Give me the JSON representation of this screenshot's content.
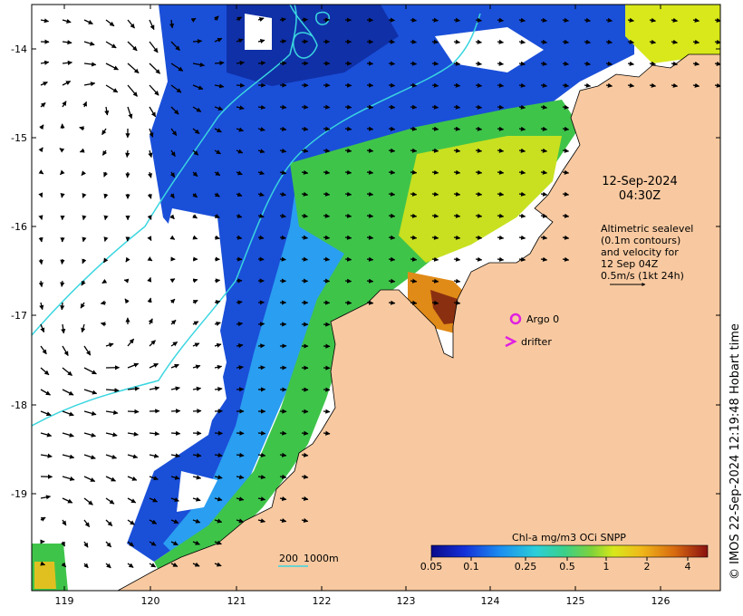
{
  "axes": {
    "y_ticks": [
      "-14",
      "-15",
      "-16",
      "-17",
      "-18",
      "-19"
    ],
    "x_ticks": [
      "119",
      "120",
      "121",
      "122",
      "123",
      "124",
      "125",
      "126"
    ]
  },
  "annotations": {
    "date": "12-Sep-2024",
    "time": "04:30Z",
    "sealevel_lines": [
      "Altimetric sealevel",
      "(0.1m contours)",
      "and velocity for",
      "12 Sep 04Z",
      "0.5m/s (1kt 24h)"
    ],
    "argo_label": "Argo 0",
    "drifter_label": "drifter",
    "depth_200": "200",
    "depth_1000": "1000m",
    "credit": "© IMOS 22-Sep-2024 12:19:48 Hobart time"
  },
  "colorbar": {
    "title": "Chl-a mg/m3 OCi SNPP",
    "ticks": [
      "0.05",
      "0.1",
      "0.25",
      "0.5",
      "1",
      "2",
      "4"
    ]
  },
  "colors": {
    "land": "#f8c9a0",
    "contour": "#3ad6e0",
    "marker": "#e020e0"
  }
}
